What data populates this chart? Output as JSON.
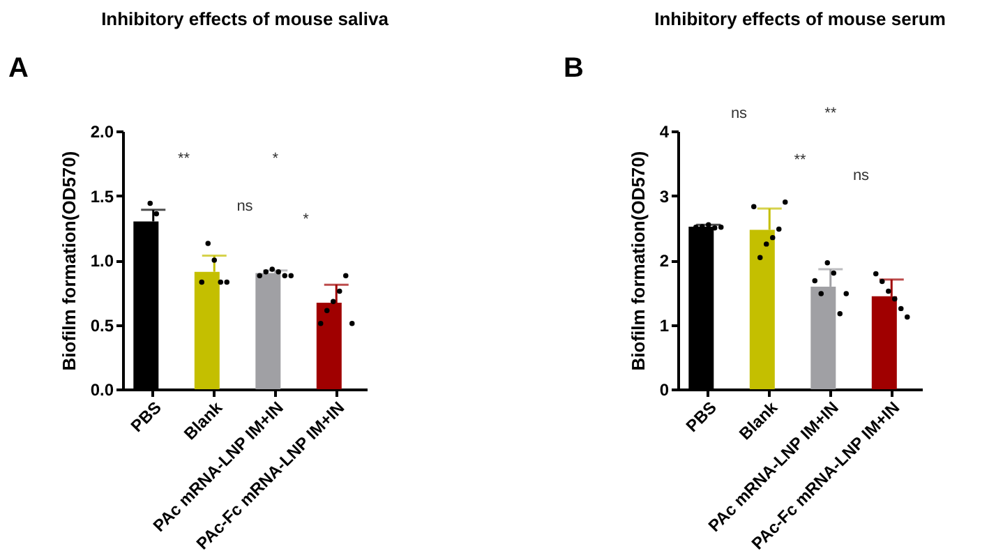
{
  "chart_data": [
    {
      "type": "bar",
      "title": "Inhibitory effects of mouse saliva",
      "ylabel": "Biofilm formation(OD570)",
      "categories": [
        "PBS",
        "Blank",
        "PAc mRNA-LNP IM+IN",
        "PAc-Fc mRNA-LNP IM+IN"
      ],
      "ylim": [
        0,
        2
      ],
      "yticks": [
        {
          "value": 0,
          "label": "0.0"
        },
        0.5,
        {
          "value": 1,
          "label": "1.0"
        },
        1.5,
        {
          "value": 2,
          "label": "2.0"
        }
      ],
      "marker": "circle",
      "series": [
        {
          "colors": [
            "#000000",
            "#c4bf00",
            "#a0a0a4",
            "#a00000"
          ],
          "values": [
            1.3,
            0.91,
            0.9,
            0.67
          ],
          "errors": [
            [
              1.3,
              1.39
            ],
            [
              0.91,
              1.035
            ],
            [
              0.9,
              0.92
            ],
            [
              0.67,
              0.81
            ]
          ]
        },
        {
          "type": "scatter",
          "color": "#000000",
          "x": [
            "PBS",
            "PBS",
            "Blank",
            "Blank",
            "Blank",
            "Blank",
            "Blank",
            "PAc mRNA-LNP IM+IN",
            "PAc mRNA-LNP IM+IN",
            "PAc mRNA-LNP IM+IN",
            "PAc mRNA-LNP IM+IN",
            "PAc mRNA-LNP IM+IN",
            "PAc mRNA-LNP IM+IN",
            "PAc-Fc mRNA-LNP IM+IN",
            "PAc-Fc mRNA-LNP IM+IN",
            "PAc-Fc mRNA-LNP IM+IN",
            "PAc-Fc mRNA-LNP IM+IN",
            "PAc-Fc mRNA-LNP IM+IN",
            "PAc-Fc mRNA-LNP IM+IN"
          ],
          "values": [
            1.44,
            1.36,
            0.83,
            1.13,
            1.0,
            0.83,
            0.83,
            0.88,
            0.91,
            0.93,
            0.91,
            0.88,
            0.88,
            0.51,
            0.61,
            0.68,
            0.76,
            0.88,
            0.51
          ]
        }
      ],
      "annotations": [
        "A",
        "**",
        "*",
        "ns",
        "*"
      ]
    },
    {
      "type": "bar",
      "title": "Inhibitory effects of mouse serum",
      "ylabel": "Biofilm formation(OD570)",
      "categories": [
        "PBS",
        "Blank",
        "PAc mRNA-LNP IM+IN",
        "PAc-Fc mRNA-LNP IM+IN"
      ],
      "ylim": [
        0,
        4
      ],
      "yticks": [
        0,
        1,
        2,
        3,
        4
      ],
      "marker": "circle",
      "series": [
        {
          "colors": [
            "#000000",
            "#c4bf00",
            "#a0a0a4",
            "#a00000"
          ],
          "values": [
            2.52,
            2.47,
            1.59,
            1.44
          ],
          "errors": [
            [
              2.52,
              2.55
            ],
            [
              2.47,
              2.8
            ],
            [
              1.59,
              1.86
            ],
            [
              1.44,
              1.7
            ]
          ]
        },
        {
          "type": "scatter",
          "color": "#000000",
          "x": [
            "PBS",
            "PBS",
            "PBS",
            "PBS",
            "PBS",
            "Blank",
            "Blank",
            "Blank",
            "Blank",
            "Blank",
            "Blank",
            "PAc mRNA-LNP IM+IN",
            "PAc mRNA-LNP IM+IN",
            "PAc mRNA-LNP IM+IN",
            "PAc mRNA-LNP IM+IN",
            "PAc mRNA-LNP IM+IN",
            "PAc mRNA-LNP IM+IN",
            "PAc-Fc mRNA-LNP IM+IN",
            "PAc-Fc mRNA-LNP IM+IN",
            "PAc-Fc mRNA-LNP IM+IN",
            "PAc-Fc mRNA-LNP IM+IN",
            "PAc-Fc mRNA-LNP IM+IN",
            "PAc-Fc mRNA-LNP IM+IN"
          ],
          "values": [
            2.51,
            2.52,
            2.55,
            2.5,
            2.51,
            2.83,
            2.04,
            2.25,
            2.35,
            2.48,
            2.9,
            1.68,
            1.48,
            1.96,
            1.8,
            1.17,
            1.48,
            1.79,
            1.67,
            1.52,
            1.4,
            1.25,
            1.12
          ]
        }
      ],
      "annotations": [
        "B",
        "ns",
        "**",
        "**",
        "ns"
      ]
    }
  ]
}
